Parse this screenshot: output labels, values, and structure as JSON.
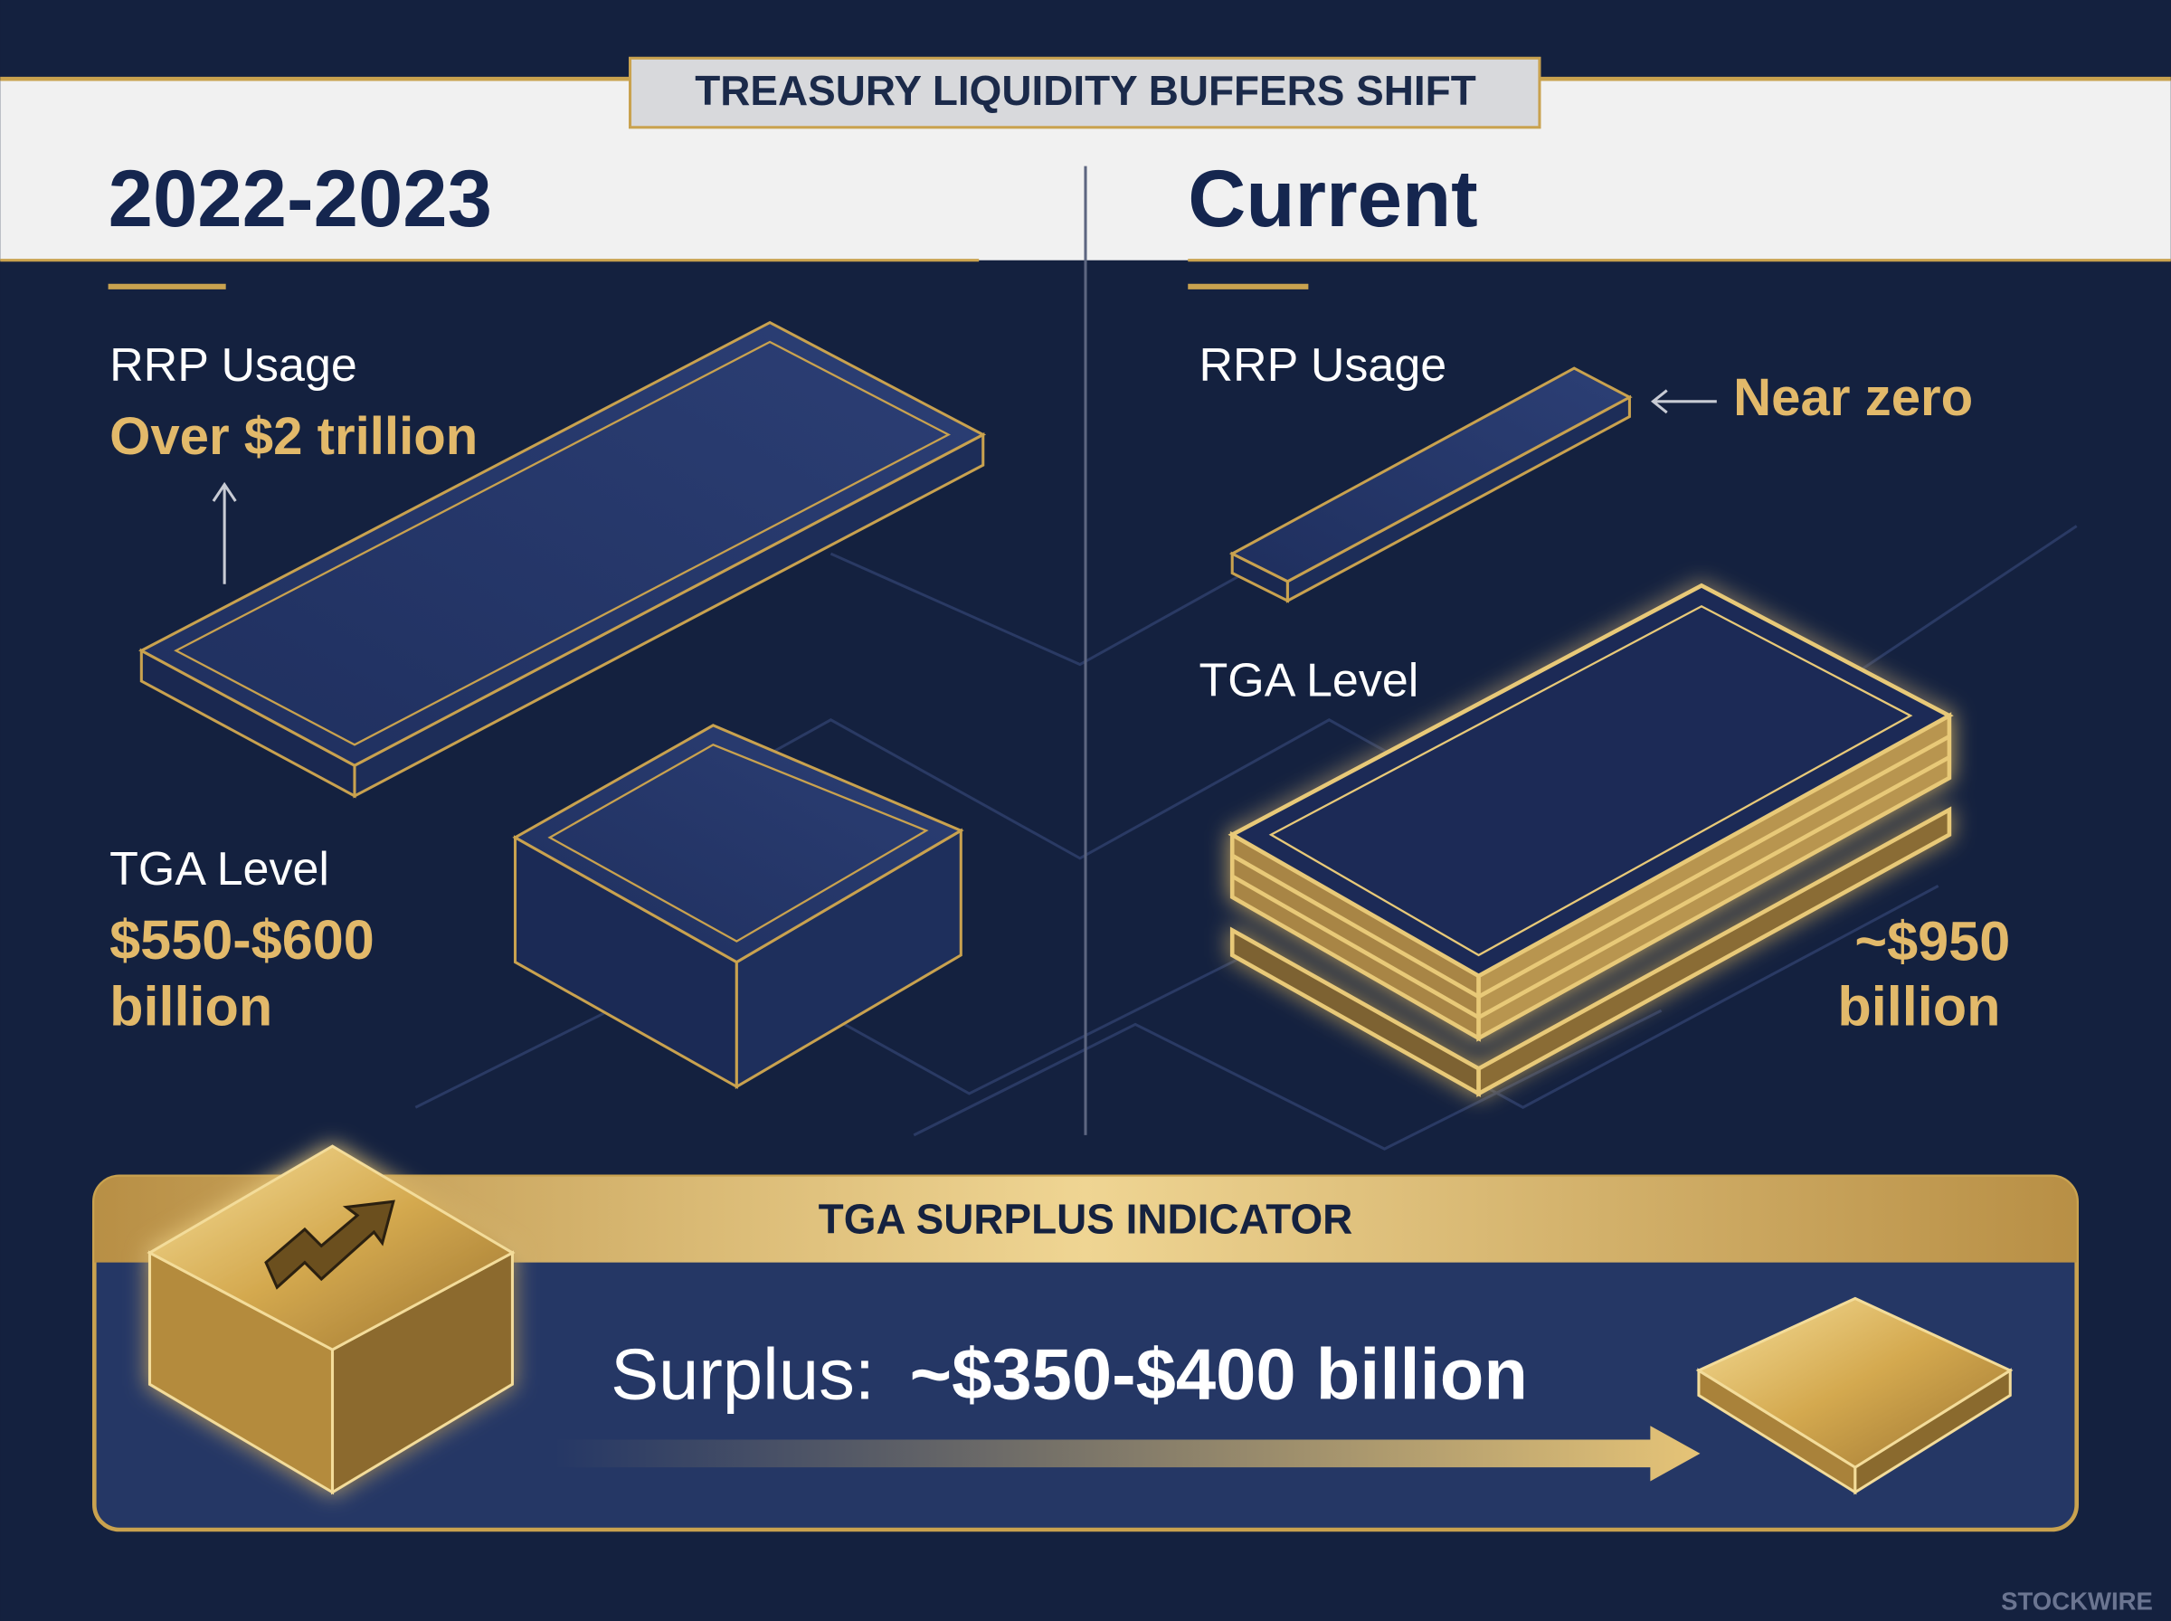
{
  "header": {
    "title": "TREASURY LIQUIDITY BUFFERS SHIFT"
  },
  "left": {
    "heading": "2022-2023",
    "rrp": {
      "label": "RRP Usage",
      "value": "Over $2 trillion"
    },
    "tga": {
      "label": "TGA Level",
      "value_lines": [
        "$550-$600",
        "billion"
      ]
    }
  },
  "right": {
    "heading": "Current",
    "rrp": {
      "label": "RRP Usage",
      "value": "Near zero"
    },
    "tga": {
      "label": "TGA Level",
      "value_lines": [
        "~$950",
        "billion"
      ]
    }
  },
  "indicator": {
    "title": "TGA SURPLUS INDICATOR",
    "label": "Surplus:",
    "value": "~$350-$400 billion"
  },
  "footer": {
    "brand": "STOCKWIRE"
  }
}
